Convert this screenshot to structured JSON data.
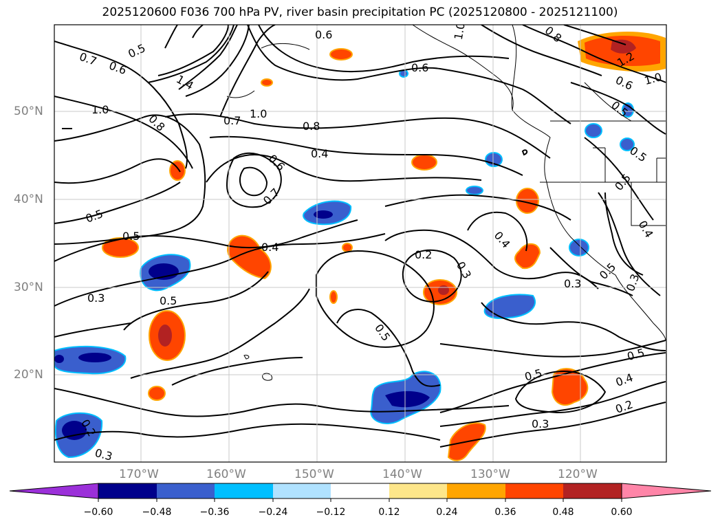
{
  "title": "2025120600 F036 700 hPa PV, river basin precipitation PC (2025120800 - 2025121100)",
  "map": {
    "lat_labels": [
      "50°N",
      "40°N",
      "30°N",
      "20°N"
    ],
    "lon_labels": [
      "170°W",
      "160°W",
      "150°W",
      "140°W",
      "130°W",
      "120°W"
    ],
    "contour_labels": [
      "0.6",
      "0.6",
      "0.7",
      "0.5",
      "1.4",
      "1.0",
      "0.8",
      "0.7",
      "1.0",
      "0.8",
      "0.6",
      "0.4",
      "0.6",
      "0.7",
      "0.5",
      "0.5",
      "0.4",
      "0.3",
      "0.5",
      "0.2",
      "0.3",
      "0.4",
      "0.3",
      "0.5",
      "0.5",
      "0.5",
      "0.4",
      "0.2",
      "0.3",
      "0.2",
      "0.3",
      "1.0",
      "0.8",
      "1.2",
      "0.6",
      "1.0",
      "0.5",
      "0.5",
      "0.5",
      "0.4",
      "0.5",
      "0.3"
    ]
  },
  "colorbar": {
    "ticks": [
      "−0.60",
      "−0.48",
      "−0.36",
      "−0.24",
      "−0.12",
      "0.12",
      "0.24",
      "0.36",
      "0.48",
      "0.60"
    ],
    "colors": [
      "#9b30d9",
      "#00008b",
      "#3a5fcd",
      "#00bfff",
      "#b0e2ff",
      "#ffffff",
      "#fde68a",
      "#ffa500",
      "#ff4500",
      "#b22222",
      "#ff85a8"
    ]
  },
  "colors": {
    "positive_light": "#fde68a",
    "positive_mid": "#ffa500",
    "positive_strong": "#ff4500",
    "positive_max": "#b22222",
    "negative_light": "#b0e2ff",
    "negative_mid": "#00bfff",
    "negative_strong": "#3a5fcd",
    "negative_max": "#00008b"
  }
}
